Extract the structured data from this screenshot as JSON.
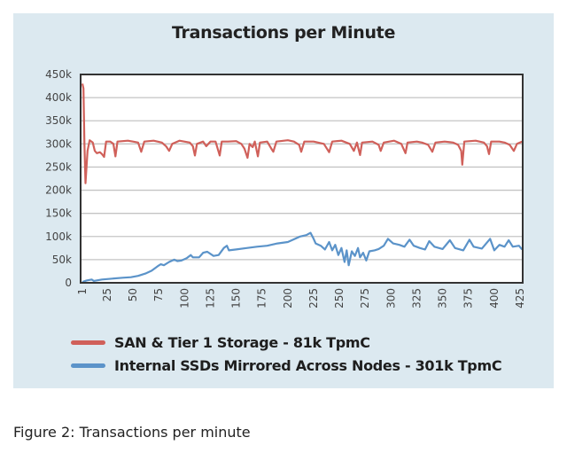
{
  "chart_data": {
    "type": "line",
    "title": "Transactions per Minute",
    "xlabel": "",
    "ylabel": "",
    "xlim": [
      1,
      427
    ],
    "ylim": [
      0,
      450000
    ],
    "yticks": [
      0,
      50000,
      100000,
      150000,
      200000,
      250000,
      300000,
      350000,
      400000,
      450000
    ],
    "ytick_labels": [
      "0",
      "50k",
      "100k",
      "150k",
      "200k",
      "250k",
      "300k",
      "350k",
      "400k",
      "450k"
    ],
    "xticks": [
      1,
      25,
      50,
      75,
      100,
      125,
      150,
      175,
      200,
      225,
      250,
      275,
      300,
      325,
      350,
      375,
      400,
      425
    ],
    "xtick_labels": [
      "1",
      "25",
      "50",
      "75",
      "100",
      "125",
      "150",
      "175",
      "200",
      "225",
      "250",
      "275",
      "300",
      "325",
      "350",
      "375",
      "400",
      "425"
    ],
    "grid": true,
    "legend_position": "bottom",
    "series": [
      {
        "name": "SAN & Tier 1 Storage - 81k TpmC",
        "color": "#d0605a",
        "points_k": [
          [
            1,
            430
          ],
          [
            2,
            420
          ],
          [
            3,
            300
          ],
          [
            4,
            215
          ],
          [
            6,
            285
          ],
          [
            8,
            308
          ],
          [
            11,
            303
          ],
          [
            13,
            285
          ],
          [
            15,
            280
          ],
          [
            18,
            282
          ],
          [
            20,
            278
          ],
          [
            22,
            272
          ],
          [
            24,
            305
          ],
          [
            28,
            305
          ],
          [
            31,
            300
          ],
          [
            33,
            273
          ],
          [
            35,
            305
          ],
          [
            45,
            307
          ],
          [
            50,
            305
          ],
          [
            55,
            303
          ],
          [
            58,
            283
          ],
          [
            61,
            305
          ],
          [
            70,
            307
          ],
          [
            78,
            303
          ],
          [
            82,
            295
          ],
          [
            85,
            285
          ],
          [
            88,
            300
          ],
          [
            95,
            307
          ],
          [
            105,
            303
          ],
          [
            108,
            295
          ],
          [
            110,
            275
          ],
          [
            112,
            300
          ],
          [
            118,
            305
          ],
          [
            121,
            295
          ],
          [
            125,
            305
          ],
          [
            130,
            305
          ],
          [
            134,
            275
          ],
          [
            136,
            305
          ],
          [
            142,
            305
          ],
          [
            150,
            306
          ],
          [
            155,
            300
          ],
          [
            158,
            290
          ],
          [
            161,
            270
          ],
          [
            163,
            300
          ],
          [
            166,
            293
          ],
          [
            168,
            305
          ],
          [
            171,
            273
          ],
          [
            173,
            303
          ],
          [
            180,
            305
          ],
          [
            184,
            290
          ],
          [
            186,
            283
          ],
          [
            189,
            305
          ],
          [
            200,
            308
          ],
          [
            206,
            305
          ],
          [
            211,
            298
          ],
          [
            213,
            283
          ],
          [
            216,
            305
          ],
          [
            225,
            305
          ],
          [
            235,
            300
          ],
          [
            240,
            282
          ],
          [
            243,
            305
          ],
          [
            252,
            307
          ],
          [
            260,
            300
          ],
          [
            264,
            285
          ],
          [
            267,
            303
          ],
          [
            270,
            276
          ],
          [
            272,
            303
          ],
          [
            282,
            305
          ],
          [
            288,
            298
          ],
          [
            290,
            285
          ],
          [
            293,
            303
          ],
          [
            303,
            307
          ],
          [
            310,
            300
          ],
          [
            314,
            280
          ],
          [
            316,
            303
          ],
          [
            325,
            305
          ],
          [
            330,
            303
          ],
          [
            336,
            298
          ],
          [
            340,
            283
          ],
          [
            343,
            303
          ],
          [
            352,
            305
          ],
          [
            360,
            303
          ],
          [
            365,
            298
          ],
          [
            368,
            285
          ],
          [
            369,
            255
          ],
          [
            371,
            305
          ],
          [
            382,
            307
          ],
          [
            390,
            303
          ],
          [
            393,
            295
          ],
          [
            395,
            278
          ],
          [
            397,
            305
          ],
          [
            405,
            305
          ],
          [
            410,
            303
          ],
          [
            415,
            298
          ],
          [
            419,
            285
          ],
          [
            422,
            300
          ],
          [
            427,
            305
          ]
        ]
      },
      {
        "name": "Internal SSDs Mirrored Across Nodes - 301k TpmC",
        "color": "#5b93c9",
        "points_k": [
          [
            1,
            2
          ],
          [
            5,
            5
          ],
          [
            10,
            7
          ],
          [
            12,
            4
          ],
          [
            20,
            7
          ],
          [
            30,
            9
          ],
          [
            40,
            11
          ],
          [
            48,
            12
          ],
          [
            55,
            15
          ],
          [
            62,
            20
          ],
          [
            68,
            26
          ],
          [
            74,
            36
          ],
          [
            77,
            40
          ],
          [
            80,
            38
          ],
          [
            85,
            45
          ],
          [
            90,
            50
          ],
          [
            93,
            47
          ],
          [
            97,
            48
          ],
          [
            102,
            53
          ],
          [
            106,
            60
          ],
          [
            108,
            55
          ],
          [
            114,
            55
          ],
          [
            118,
            65
          ],
          [
            122,
            67
          ],
          [
            128,
            58
          ],
          [
            133,
            60
          ],
          [
            138,
            75
          ],
          [
            141,
            80
          ],
          [
            143,
            70
          ],
          [
            150,
            72
          ],
          [
            160,
            75
          ],
          [
            170,
            78
          ],
          [
            180,
            80
          ],
          [
            190,
            85
          ],
          [
            200,
            88
          ],
          [
            207,
            95
          ],
          [
            212,
            100
          ],
          [
            218,
            103
          ],
          [
            222,
            108
          ],
          [
            225,
            95
          ],
          [
            227,
            85
          ],
          [
            232,
            80
          ],
          [
            236,
            72
          ],
          [
            240,
            88
          ],
          [
            243,
            70
          ],
          [
            246,
            82
          ],
          [
            249,
            60
          ],
          [
            252,
            75
          ],
          [
            255,
            45
          ],
          [
            257,
            70
          ],
          [
            259,
            38
          ],
          [
            262,
            68
          ],
          [
            265,
            58
          ],
          [
            268,
            75
          ],
          [
            270,
            55
          ],
          [
            273,
            65
          ],
          [
            276,
            48
          ],
          [
            279,
            68
          ],
          [
            284,
            70
          ],
          [
            288,
            73
          ],
          [
            293,
            80
          ],
          [
            297,
            95
          ],
          [
            302,
            85
          ],
          [
            308,
            82
          ],
          [
            313,
            78
          ],
          [
            318,
            93
          ],
          [
            322,
            80
          ],
          [
            328,
            75
          ],
          [
            333,
            72
          ],
          [
            337,
            90
          ],
          [
            342,
            78
          ],
          [
            350,
            73
          ],
          [
            357,
            92
          ],
          [
            362,
            75
          ],
          [
            370,
            70
          ],
          [
            376,
            93
          ],
          [
            380,
            78
          ],
          [
            388,
            74
          ],
          [
            396,
            95
          ],
          [
            400,
            70
          ],
          [
            405,
            82
          ],
          [
            410,
            78
          ],
          [
            414,
            92
          ],
          [
            418,
            78
          ],
          [
            424,
            80
          ],
          [
            427,
            72
          ]
        ]
      }
    ]
  },
  "caption": "Figure 2: Transactions per minute"
}
